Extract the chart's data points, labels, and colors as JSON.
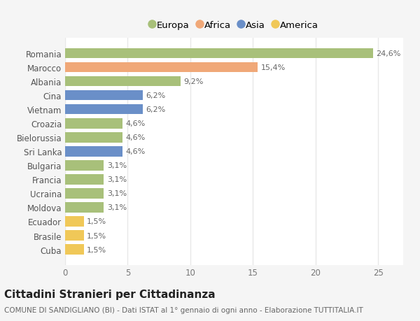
{
  "countries": [
    "Romania",
    "Marocco",
    "Albania",
    "Cina",
    "Vietnam",
    "Croazia",
    "Bielorussia",
    "Sri Lanka",
    "Bulgaria",
    "Francia",
    "Ucraina",
    "Moldova",
    "Ecuador",
    "Brasile",
    "Cuba"
  ],
  "values": [
    24.6,
    15.4,
    9.2,
    6.2,
    6.2,
    4.6,
    4.6,
    4.6,
    3.1,
    3.1,
    3.1,
    3.1,
    1.5,
    1.5,
    1.5
  ],
  "labels": [
    "24,6%",
    "15,4%",
    "9,2%",
    "6,2%",
    "6,2%",
    "4,6%",
    "4,6%",
    "4,6%",
    "3,1%",
    "3,1%",
    "3,1%",
    "3,1%",
    "1,5%",
    "1,5%",
    "1,5%"
  ],
  "continents": [
    "Europa",
    "Africa",
    "Europa",
    "Asia",
    "Asia",
    "Europa",
    "Europa",
    "Asia",
    "Europa",
    "Europa",
    "Europa",
    "Europa",
    "America",
    "America",
    "America"
  ],
  "colors": {
    "Europa": "#a8c07a",
    "Africa": "#f0a878",
    "Asia": "#6a8fc8",
    "America": "#f0c858"
  },
  "legend_order": [
    "Europa",
    "Africa",
    "Asia",
    "America"
  ],
  "title": "Cittadini Stranieri per Cittadinanza",
  "subtitle": "COMUNE DI SANDIGLIANO (BI) - Dati ISTAT al 1° gennaio di ogni anno - Elaborazione TUTTITALIA.IT",
  "xlim": [
    0,
    27
  ],
  "xticks": [
    0,
    5,
    10,
    15,
    20,
    25
  ],
  "bg_color": "#f5f5f5",
  "plot_bg_color": "#ffffff",
  "grid_color": "#e8e8e8",
  "bar_height": 0.72,
  "label_fontsize": 8,
  "tick_fontsize": 8.5,
  "title_fontsize": 11,
  "subtitle_fontsize": 7.5,
  "legend_fontsize": 9.5
}
